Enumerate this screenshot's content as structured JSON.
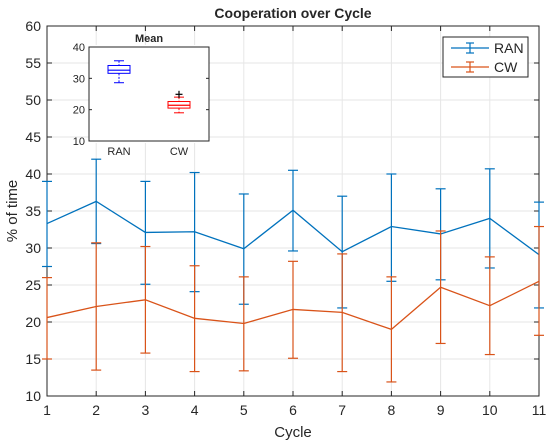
{
  "chart_data": {
    "type": "line",
    "title": "Cooperation over Cycle",
    "xlabel": "Cycle",
    "ylabel": "% of time",
    "xlim": [
      1,
      11
    ],
    "ylim": [
      10,
      60
    ],
    "x": [
      1,
      2,
      3,
      4,
      5,
      6,
      7,
      8,
      9,
      10,
      11
    ],
    "x_ticks": [
      "1",
      "2",
      "3",
      "4",
      "5",
      "6",
      "7",
      "8",
      "9",
      "10",
      "11"
    ],
    "y_ticks": [
      "10",
      "15",
      "20",
      "25",
      "30",
      "35",
      "40",
      "45",
      "50",
      "55",
      "60"
    ],
    "grid": true,
    "legend_position": "top-right",
    "series": [
      {
        "name": "RAN",
        "color": "#0072BD",
        "values": [
          33.3,
          36.3,
          32.1,
          32.2,
          29.9,
          35.1,
          29.5,
          32.9,
          31.9,
          34.0,
          29.1
        ],
        "lower": [
          27.5,
          30.6,
          25.1,
          24.1,
          22.4,
          29.6,
          21.9,
          25.5,
          25.7,
          27.3,
          21.9
        ],
        "upper": [
          39.0,
          42.0,
          39.0,
          40.2,
          37.3,
          40.5,
          37.0,
          40.0,
          38.0,
          40.7,
          36.2
        ]
      },
      {
        "name": "CW",
        "color": "#D95319",
        "values": [
          20.6,
          22.1,
          23.0,
          20.5,
          19.8,
          21.7,
          21.3,
          19.0,
          24.7,
          22.2,
          25.5
        ],
        "lower": [
          15.0,
          13.5,
          15.8,
          13.3,
          13.4,
          15.1,
          13.3,
          11.9,
          17.1,
          15.6,
          18.2
        ],
        "upper": [
          26.0,
          30.7,
          30.2,
          27.6,
          26.1,
          28.2,
          29.2,
          26.1,
          32.3,
          28.8,
          32.9
        ]
      }
    ],
    "inset": {
      "type": "box",
      "title": "Mean",
      "categories": [
        "RAN",
        "CW"
      ],
      "ylim": [
        10,
        40
      ],
      "y_ticks": [
        "10",
        "20",
        "30",
        "40"
      ],
      "boxes": [
        {
          "category": "RAN",
          "color": "#0000FF",
          "whisker_low": 28.6,
          "q1": 31.6,
          "median": 32.6,
          "q3": 34.1,
          "whisker_high": 35.6,
          "outliers": []
        },
        {
          "category": "CW",
          "color": "#FF0000",
          "whisker_low": 19.0,
          "q1": 20.5,
          "median": 21.4,
          "q3": 22.6,
          "whisker_high": 24.0,
          "outliers": [
            24.9
          ]
        }
      ]
    }
  }
}
